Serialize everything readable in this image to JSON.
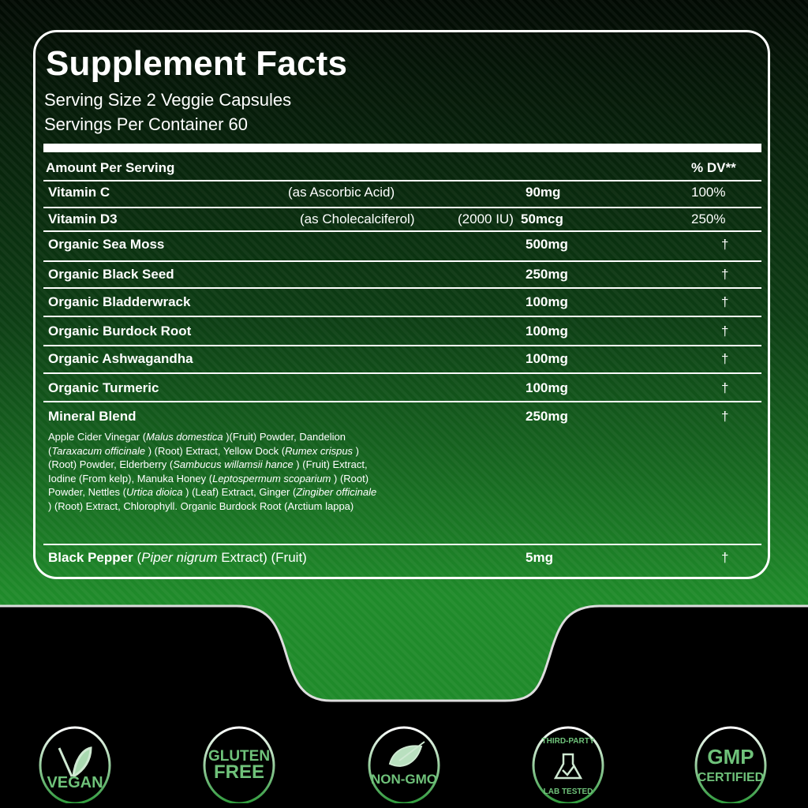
{
  "colors": {
    "accent": "#1f8a2a",
    "dark": "#07200b",
    "badge": "#3fa34d"
  },
  "panel": {
    "title": "Supplement Facts",
    "serving_size": "Serving Size 2 Veggie Capsules",
    "servings_per_container": "Servings Per Container 60",
    "header": {
      "amount": "Amount Per Serving",
      "dv": "% DV**"
    },
    "rows": [
      {
        "name": "Vitamin C",
        "source": "(as Ascorbic Acid)",
        "extra": "",
        "amount": "90mg",
        "dv": "100%"
      },
      {
        "name": "Vitamin D3",
        "source": "(as Cholecalciferol)",
        "extra": "(2000 IU)",
        "amount": "50mcg",
        "dv": "250%"
      },
      {
        "name": "Organic Sea Moss",
        "amount": "500mg",
        "dv": "†"
      },
      {
        "name": "Organic Black Seed",
        "amount": "250mg",
        "dv": "†"
      },
      {
        "name": "Organic Bladderwrack",
        "amount": "100mg",
        "dv": "†"
      },
      {
        "name": "Organic Burdock Root",
        "amount": "100mg",
        "dv": "†"
      },
      {
        "name": "Organic Ashwagandha",
        "amount": "100mg",
        "dv": "†"
      },
      {
        "name": "Organic Turmeric",
        "amount": "100mg",
        "dv": "†"
      },
      {
        "name": "Mineral Blend",
        "amount": "250mg",
        "dv": "†"
      }
    ],
    "blend_parts": [
      [
        "Apple Cider Vinegar (",
        ""
      ],
      [
        "Malus domestica",
        "i"
      ],
      [
        " )(Fruit) Powder, Dandelion (",
        ""
      ],
      [
        "Taraxacum officinale",
        "i"
      ],
      [
        " ) (Root) Extract, Yellow Dock (",
        ""
      ],
      [
        "Rumex crispus",
        "i"
      ],
      [
        " ) (Root) Powder, Elderberry (",
        ""
      ],
      [
        "Sambucus willamsii hance",
        "i"
      ],
      [
        " ) (Fruit) Extract, Iodine (From kelp), Manuka Honey (",
        ""
      ],
      [
        "Leptospermum scoparium",
        "i"
      ],
      [
        " ) (Root) Powder, Nettles (",
        ""
      ],
      [
        "Urtica dioica",
        "i"
      ],
      [
        " ) (Leaf) Extract, Ginger (",
        ""
      ],
      [
        "Zingiber officinale",
        "i"
      ],
      [
        " ) (Root) Extract, Chlorophyll. Organic Burdock Root (Arctium lappa)",
        ""
      ]
    ],
    "pepper": {
      "name": "Black Pepper",
      "open": " (",
      "latin": "Piper nigrum",
      "rest": " Extract) (Fruit)",
      "amount": "5mg",
      "dv": "†"
    }
  },
  "badges": [
    {
      "icon": "leaf-check-icon",
      "lines": [
        "VEGAN"
      ]
    },
    {
      "icon": "",
      "lines": [
        "GLUTEN",
        "FREE"
      ]
    },
    {
      "icon": "leaf-icon",
      "lines": [
        "NON-GMO"
      ]
    },
    {
      "icon": "flask-check-icon",
      "lines": [
        "THIRD-PARTY",
        "LAB TESTED"
      ]
    },
    {
      "icon": "",
      "lines": [
        "GMP",
        "CERTIFIED"
      ]
    }
  ]
}
